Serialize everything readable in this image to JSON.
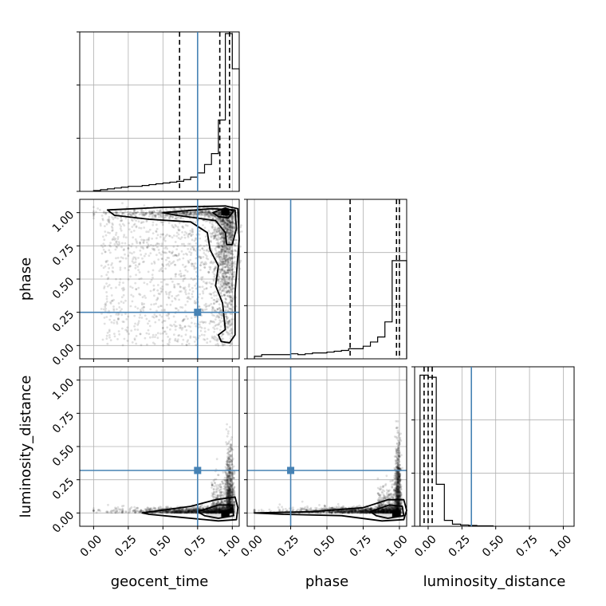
{
  "chart_data": {
    "type": "scatter",
    "variables": [
      "geocent_time",
      "phase",
      "luminosity_distance"
    ],
    "truths": {
      "geocent_time": 0.75,
      "phase": 0.25,
      "luminosity_distance": 0.32
    },
    "truth_color": "#4682b4",
    "grid": true,
    "tick_labels": [
      "0.00",
      "0.25",
      "0.50",
      "0.75",
      "1.00"
    ],
    "panels": {
      "hist_geocent_time": {
        "xlim": [
          -0.1,
          1.05
        ],
        "quantiles": [
          0.62,
          0.91,
          0.98
        ],
        "bin_edges": [
          0.0,
          0.05,
          0.1,
          0.15,
          0.2,
          0.25,
          0.3,
          0.35,
          0.4,
          0.45,
          0.5,
          0.55,
          0.6,
          0.65,
          0.7,
          0.75,
          0.8,
          0.85,
          0.9,
          0.95,
          1.0,
          1.05
        ],
        "counts": [
          1,
          2,
          3,
          4,
          5,
          6,
          6,
          7,
          8,
          9,
          10,
          11,
          12,
          14,
          17,
          22,
          32,
          45,
          85,
          188,
          146
        ],
        "ylim": [
          0,
          190
        ]
      },
      "hist_phase": {
        "xlim": [
          -0.05,
          1.05
        ],
        "quantiles": [
          0.66,
          0.98,
          1.0
        ],
        "bin_edges": [
          0.0,
          0.05,
          0.1,
          0.15,
          0.2,
          0.25,
          0.3,
          0.35,
          0.4,
          0.45,
          0.5,
          0.55,
          0.6,
          0.65,
          0.7,
          0.75,
          0.8,
          0.85,
          0.9,
          0.95,
          1.0,
          1.05
        ],
        "counts": [
          3,
          5,
          5,
          5,
          5,
          6,
          5,
          6,
          7,
          7,
          8,
          9,
          10,
          12,
          12,
          15,
          20,
          26,
          44,
          117,
          117
        ],
        "ylim": [
          0,
          190
        ]
      },
      "hist_luminosity_distance": {
        "xlim": [
          -0.1,
          1.08
        ],
        "quantiles": [
          -0.03,
          0.0,
          0.03
        ],
        "bin_edges": [
          -0.06,
          0.0,
          0.06,
          0.12,
          0.18,
          0.24,
          0.3,
          0.36,
          0.42,
          0.48
        ],
        "counts": [
          360,
          355,
          100,
          14,
          5,
          3,
          2,
          1,
          1
        ],
        "ylim": [
          0,
          380
        ]
      },
      "phase_vs_geocent_time": {
        "xlim": [
          -0.1,
          1.05
        ],
        "ylim": [
          -0.1,
          1.1
        ]
      },
      "luminosity_distance_vs_geocent_time": {
        "xlim": [
          -0.1,
          1.05
        ],
        "ylim": [
          -0.1,
          1.1
        ]
      },
      "luminosity_distance_vs_phase": {
        "xlim": [
          -0.05,
          1.05
        ],
        "ylim": [
          -0.1,
          1.1
        ]
      }
    }
  },
  "labels": {
    "xlabel_geocent_time": "geocent_time",
    "xlabel_phase": "phase",
    "xlabel_luminosity_distance": "luminosity_distance",
    "ylabel_phase": "phase",
    "ylabel_luminosity_distance": "luminosity_distance"
  }
}
